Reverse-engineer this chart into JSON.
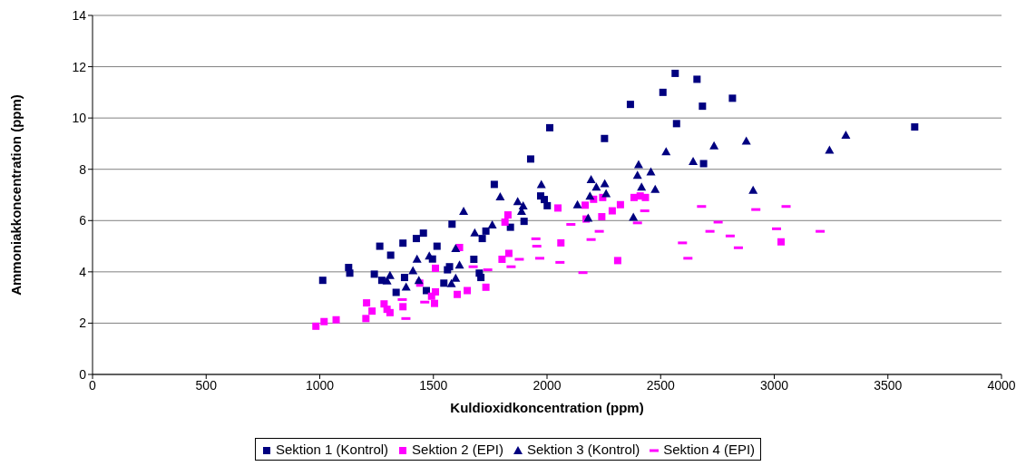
{
  "chart_data": {
    "type": "scatter",
    "xlabel": "Kuldioxidkoncentration (ppm)",
    "ylabel": "Ammoniakkoncentration (ppm)",
    "xlim": [
      0,
      4000
    ],
    "xticks": [
      0,
      500,
      1000,
      1500,
      2000,
      2500,
      3000,
      3500,
      4000
    ],
    "ylim": [
      0,
      14
    ],
    "yticks": [
      0,
      2,
      4,
      6,
      8,
      10,
      12,
      14
    ],
    "grid": "y",
    "legend": "bottom",
    "series": [
      {
        "name": "Sektion 1 (Kontrol)",
        "color": "#000080",
        "marker": "square",
        "x": [
          1013,
          1127,
          1132,
          1264,
          1240,
          1273,
          1312,
          1336,
          1366,
          1373,
          1425,
          1456,
          1469,
          1496,
          1516,
          1582,
          1546,
          1571,
          1562,
          1678,
          1702,
          1709,
          1715,
          1731,
          1928,
          1768,
          1972,
          1988,
          2001,
          1899,
          1839,
          2012,
          2564,
          2660,
          2510,
          2367,
          2684,
          2816,
          2570,
          2253,
          2689,
          3618
        ],
        "values": [
          3.67,
          4.17,
          3.95,
          5.0,
          3.91,
          3.67,
          4.65,
          3.2,
          5.12,
          3.78,
          5.3,
          5.51,
          3.27,
          4.5,
          5.0,
          5.86,
          3.56,
          4.2,
          4.08,
          4.49,
          3.95,
          3.78,
          5.3,
          5.59,
          8.4,
          7.41,
          6.96,
          6.82,
          6.58,
          5.97,
          5.74,
          9.62,
          11.74,
          11.51,
          11.0,
          10.53,
          10.46,
          10.77,
          9.78,
          9.2,
          8.22,
          9.65
        ]
      },
      {
        "name": "Sektion 2 (EPI)",
        "color": "#ff00ff",
        "marker": "square",
        "x": [
          983,
          1019,
          1072,
          1203,
          1206,
          1230,
          1283,
          1296,
          1309,
          1366,
          1492,
          1509,
          1505,
          1509,
          1440,
          1605,
          1649,
          1615,
          1731,
          1802,
          1828,
          1815,
          1832,
          2048,
          2061,
          2168,
          2205,
          2245,
          2172,
          2241,
          2287,
          2323,
          2311,
          2383,
          2410,
          2433,
          3030
        ],
        "values": [
          1.88,
          2.06,
          2.13,
          2.18,
          2.79,
          2.47,
          2.75,
          2.54,
          2.41,
          2.64,
          3.05,
          3.22,
          2.77,
          4.14,
          3.56,
          3.12,
          3.27,
          4.95,
          3.4,
          4.49,
          6.22,
          5.94,
          4.72,
          6.49,
          5.13,
          6.6,
          6.83,
          6.9,
          6.06,
          6.15,
          6.38,
          6.62,
          4.44,
          6.9,
          6.96,
          6.9,
          5.17
        ]
      },
      {
        "name": "Sektion 3 (Kontrol)",
        "color": "#000080",
        "marker": "triangle",
        "x": [
          1633,
          1428,
          1482,
          1410,
          1436,
          1380,
          1309,
          1296,
          1598,
          1615,
          1598,
          1579,
          1682,
          1759,
          1794,
          1871,
          1895,
          1888,
          1975,
          2134,
          2194,
          2217,
          2254,
          2260,
          2189,
          2181,
          2380,
          2403,
          2398,
          2457,
          2416,
          2476,
          2524,
          2643,
          2735,
          2877,
          2907,
          3315,
          3243
        ],
        "values": [
          6.36,
          4.5,
          4.62,
          4.05,
          3.67,
          3.41,
          3.86,
          3.65,
          4.91,
          4.27,
          3.76,
          3.54,
          5.52,
          5.83,
          6.93,
          6.74,
          6.58,
          6.36,
          7.41,
          6.62,
          7.6,
          7.31,
          7.44,
          7.05,
          6.96,
          6.1,
          6.13,
          8.18,
          7.77,
          7.9,
          7.31,
          7.22,
          8.69,
          8.31,
          8.92,
          9.1,
          7.19,
          9.33,
          8.75
        ]
      },
      {
        "name": "Sektion 4 (EPI)",
        "color": "#ff00ff",
        "x": [
          1363,
          1379,
          1462,
          1675,
          1739,
          2105,
          2430,
          2398,
          2230,
          2194,
          1951,
          1955,
          1968,
          1878,
          1842,
          2057,
          2158,
          2596,
          2620,
          2680,
          2919,
          3052,
          2753,
          2717,
          2806,
          2842,
          3010,
          3202
        ],
        "values": [
          2.92,
          2.18,
          2.82,
          4.2,
          4.08,
          5.85,
          6.38,
          5.91,
          5.58,
          5.26,
          5.29,
          5.0,
          4.53,
          4.49,
          4.2,
          4.37,
          3.97,
          5.13,
          4.53,
          6.55,
          6.43,
          6.55,
          5.94,
          5.58,
          5.4,
          4.94,
          5.68,
          5.58
        ]
      }
    ]
  }
}
